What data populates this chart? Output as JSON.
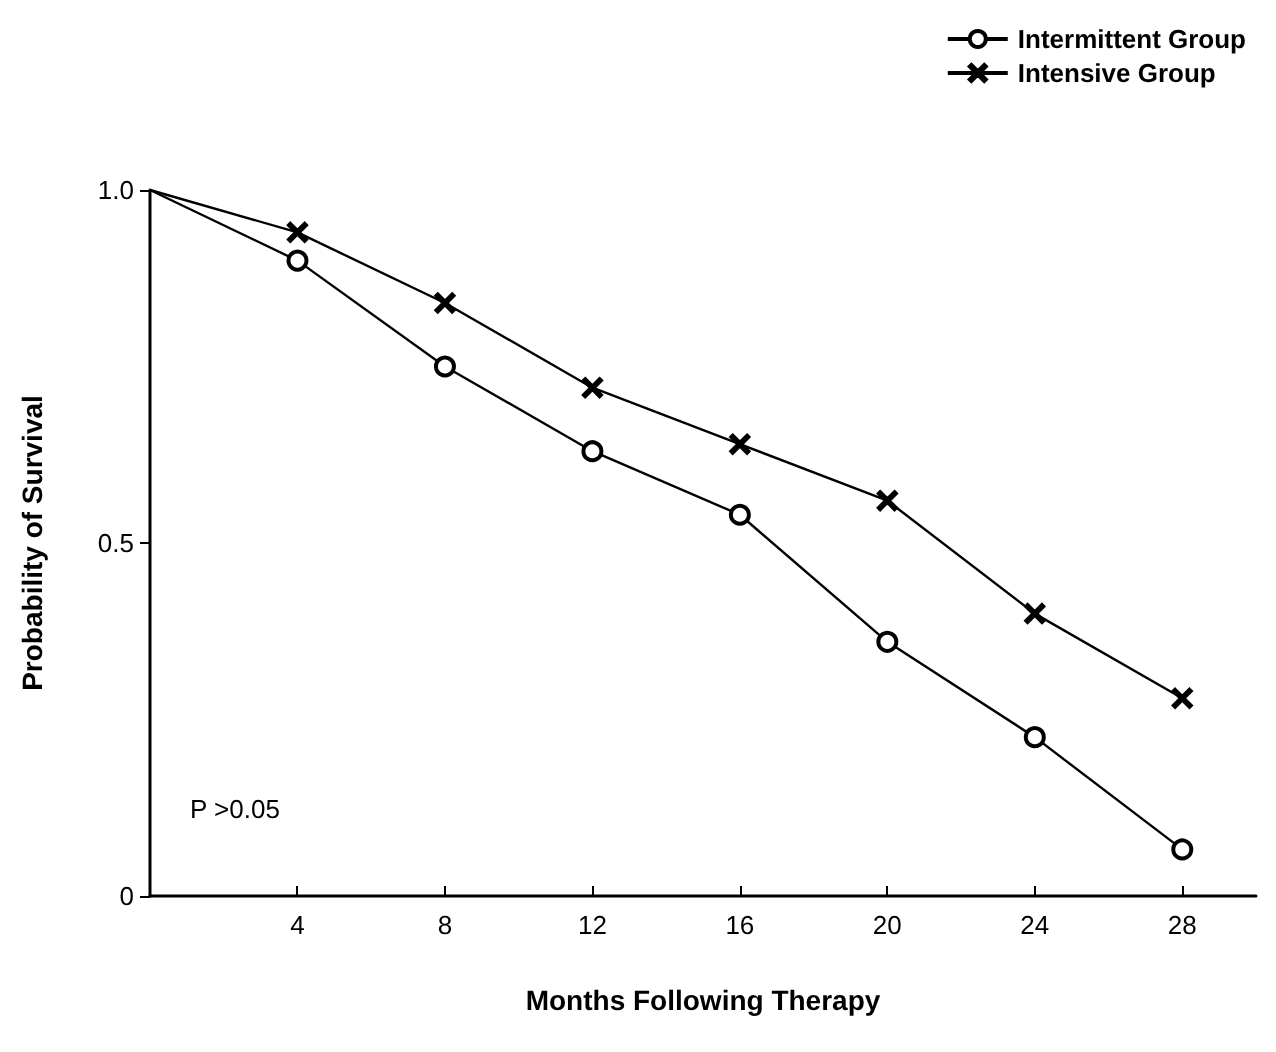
{
  "chart_data": {
    "type": "line",
    "xlabel": "Months Following Therapy",
    "ylabel": "Probability of Survival",
    "x": [
      0,
      4,
      8,
      12,
      16,
      20,
      24,
      28
    ],
    "series": [
      {
        "name": "Intermittent Group",
        "color": "#000000",
        "marker": "circle",
        "values": [
          1.0,
          0.9,
          0.75,
          0.63,
          0.54,
          0.36,
          0.225,
          0.066
        ]
      },
      {
        "name": "Intensive Group",
        "color": "#000000",
        "marker": "cross",
        "values": [
          1.0,
          0.94,
          0.84,
          0.72,
          0.64,
          0.56,
          0.4,
          0.28
        ]
      }
    ],
    "xlim": [
      0,
      30
    ],
    "xticks": [
      4,
      8,
      12,
      16,
      20,
      24,
      28
    ],
    "ylim": [
      0,
      1
    ],
    "yticks": [
      0,
      0.5,
      {
        "value": 1,
        "label": "1.0"
      }
    ],
    "grid": false,
    "legend": "top right",
    "line_style": "solid",
    "annotations": [
      "P >0.05"
    ]
  }
}
